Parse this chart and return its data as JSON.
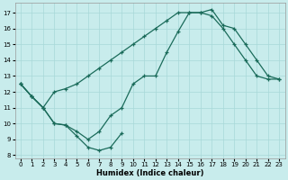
{
  "bg_color": "#c8ecec",
  "grid_color": "#a8d8d8",
  "line_color": "#1a6b5a",
  "xlabel": "Humidex (Indice chaleur)",
  "xlim": [
    -0.5,
    23.5
  ],
  "ylim": [
    7.8,
    17.6
  ],
  "xticks": [
    0,
    1,
    2,
    3,
    4,
    5,
    6,
    7,
    8,
    9,
    10,
    11,
    12,
    13,
    14,
    15,
    16,
    17,
    18,
    19,
    20,
    21,
    22,
    23
  ],
  "yticks": [
    8,
    9,
    10,
    11,
    12,
    13,
    14,
    15,
    16,
    17
  ],
  "line1_x": [
    0,
    1,
    2,
    3,
    4,
    5,
    6,
    7,
    8,
    9,
    10,
    11,
    12,
    13,
    14,
    15,
    16,
    17,
    18,
    19,
    20,
    21,
    22,
    23
  ],
  "line1_y": [
    12.5,
    11.7,
    11.0,
    12.0,
    12.2,
    12.5,
    13.0,
    13.5,
    14.0,
    14.5,
    15.0,
    15.5,
    16.0,
    16.5,
    17.0,
    17.0,
    17.0,
    16.8,
    16.0,
    15.0,
    14.0,
    13.0,
    12.8,
    12.8
  ],
  "line2_x": [
    0,
    1,
    2,
    3,
    4,
    5,
    6,
    7,
    8,
    9,
    10,
    11,
    12,
    13,
    14,
    15,
    16,
    17,
    18,
    19,
    20,
    21,
    22,
    23
  ],
  "line2_y": [
    12.5,
    11.7,
    11.0,
    10.0,
    9.9,
    9.5,
    9.0,
    9.5,
    10.5,
    11.0,
    12.5,
    13.0,
    13.0,
    14.5,
    15.8,
    17.0,
    17.0,
    17.2,
    16.2,
    16.0,
    15.0,
    14.0,
    13.0,
    12.8
  ],
  "line3_x": [
    0,
    1,
    2,
    3,
    4,
    5,
    6,
    7,
    8,
    9
  ],
  "line3_y": [
    12.5,
    11.7,
    11.0,
    10.0,
    9.9,
    9.2,
    8.5,
    8.3,
    8.5,
    9.4
  ]
}
